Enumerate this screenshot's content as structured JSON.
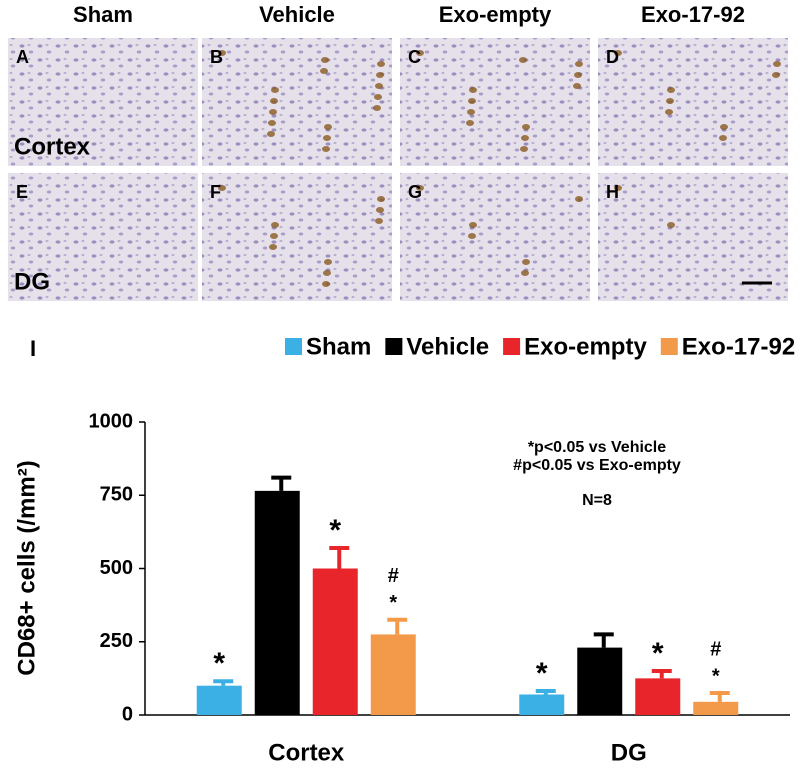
{
  "panels": {
    "columns": [
      "Sham",
      "Vehicle",
      "Exo-empty",
      "Exo-17-92"
    ],
    "rows": [
      "Cortex",
      "DG"
    ],
    "labels": [
      [
        "A",
        "B",
        "C",
        "D"
      ],
      [
        "E",
        "F",
        "G",
        "H"
      ]
    ]
  },
  "chart_data": {
    "type": "bar",
    "panel_label": "I",
    "ylabel": "CD68+ cells (/mm²)",
    "categories": [
      "Cortex",
      "DG"
    ],
    "series": [
      {
        "name": "Sham",
        "color": "#3bb0e4",
        "values": [
          100,
          70
        ],
        "errors": [
          15,
          12
        ],
        "significance": [
          [
            "*"
          ],
          [
            "*"
          ]
        ]
      },
      {
        "name": "Vehicle",
        "color": "#000000",
        "values": [
          765,
          230
        ],
        "errors": [
          45,
          45
        ]
      },
      {
        "name": "Exo-empty",
        "color": "#e8252b",
        "values": [
          500,
          125
        ],
        "errors": [
          70,
          25
        ],
        "significance": [
          [
            "*"
          ],
          [
            "*"
          ]
        ]
      },
      {
        "name": "Exo-17-92",
        "color": "#f39a4a",
        "values": [
          275,
          45
        ],
        "errors": [
          50,
          30
        ],
        "significance": [
          [
            "#",
            "*"
          ],
          [
            "#",
            "*"
          ]
        ]
      }
    ],
    "ylim": [
      0,
      1000
    ],
    "yticks": [
      0,
      250,
      500,
      750,
      1000
    ],
    "annotations": [
      "*p<0.05 vs Vehicle",
      "#p<0.05 vs Exo-empty",
      "N=8"
    ]
  }
}
